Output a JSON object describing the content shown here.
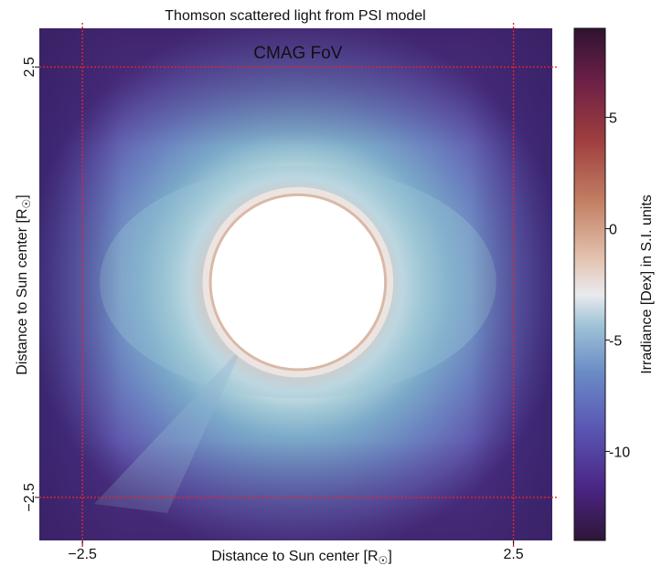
{
  "chart_data": {
    "type": "heatmap",
    "title": "Thomson scattered light from PSI model",
    "xlabel": "Distance to Sun center [R",
    "ylabel": "Distance to Sun center [R",
    "xlim": [
      -3.0,
      2.95
    ],
    "ylim": [
      -3.0,
      2.95
    ],
    "x_ticks": [
      -2.5,
      2.5
    ],
    "x_tick_labels": [
      "−2.5",
      "2.5"
    ],
    "y_ticks": [
      -2.5,
      2.5
    ],
    "y_tick_labels": [
      "−2.5",
      "2.5"
    ],
    "occulter_radius": 1.0,
    "annotations": [
      {
        "text": "CMAG FoV",
        "x": 0.0,
        "y": 2.6
      }
    ],
    "fov_box": {
      "x": [
        -2.5,
        2.5
      ],
      "y": [
        -2.5,
        2.5
      ],
      "color": "#e8232a"
    },
    "colorbar": {
      "label": "Irradiance [Dex] in S.I. units",
      "range": [
        -14,
        9
      ],
      "ticks": [
        5,
        0,
        -5,
        -10
      ],
      "tick_labels": [
        "5",
        "0",
        "-5",
        "-10"
      ],
      "colormap": "twilight_shifted"
    }
  }
}
